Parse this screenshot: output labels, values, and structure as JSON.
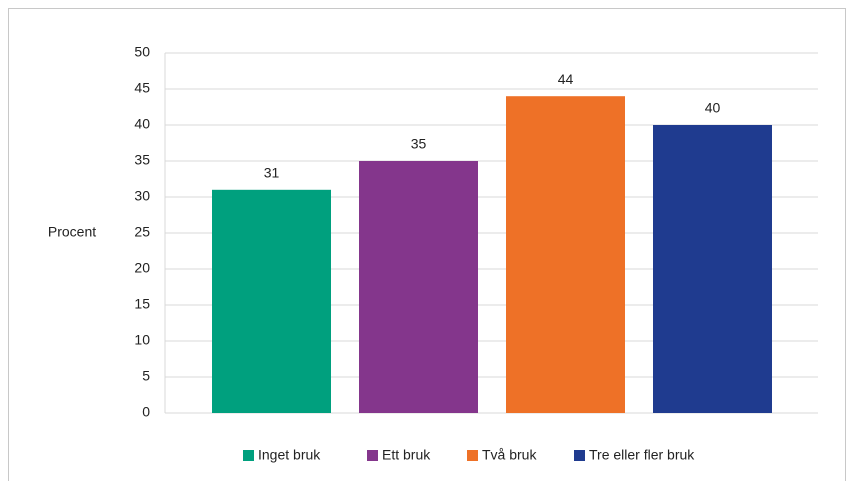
{
  "chart_data": {
    "type": "bar",
    "categories": [
      "Inget bruk",
      "Ett bruk",
      "Två bruk",
      "Tre eller fler bruk"
    ],
    "values": [
      31,
      35,
      44,
      40
    ],
    "colors": [
      "#00a07e",
      "#84368c",
      "#ee7127",
      "#1f3b8f"
    ],
    "y_label": "Procent",
    "ylim": [
      0,
      50
    ],
    "yticks": [
      0,
      5,
      10,
      15,
      20,
      25,
      30,
      35,
      40,
      45,
      50
    ],
    "grid": true,
    "legend": "bottom"
  }
}
